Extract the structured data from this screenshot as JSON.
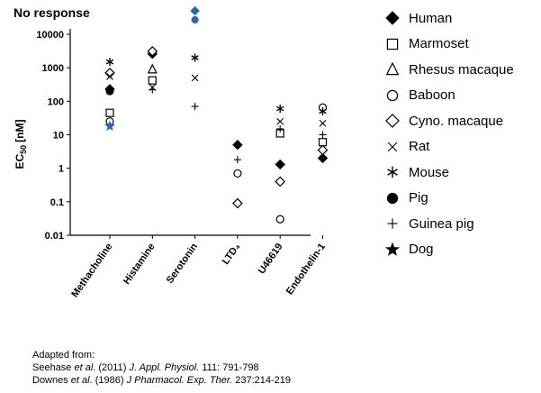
{
  "chart_data": {
    "type": "scatter",
    "title": "No response",
    "ylabel_main": "EC",
    "ylabel_sub": "50",
    "ylabel_unit": "[nM]",
    "yscale": "log",
    "ylim": [
      0.01,
      10000
    ],
    "yticks": [
      "10000",
      "1000",
      "100",
      "10",
      "1",
      "0.1",
      "0.01"
    ],
    "categories": [
      "Methacholine",
      "Histamine",
      "Serotonin",
      "LTD₄",
      "U46619",
      "Endothelin-1"
    ],
    "no_response": [
      {
        "category": "Serotonin",
        "symbol": "diamond-filled",
        "color": "#2e6aa6"
      },
      {
        "category": "Serotonin",
        "symbol": "circle-filled",
        "color": "#2e6aa6"
      }
    ],
    "series": [
      {
        "name": "Human",
        "symbol": "diamond-filled",
        "values": [
          230,
          2600,
          null,
          5,
          1.3,
          2
        ]
      },
      {
        "name": "Marmoset",
        "symbol": "square-open",
        "values": [
          45,
          420,
          null,
          null,
          11,
          6
        ]
      },
      {
        "name": "Rhesus macaque",
        "symbol": "triangle-open",
        "values": [
          null,
          900,
          null,
          null,
          null,
          null
        ]
      },
      {
        "name": "Baboon",
        "symbol": "circle-open",
        "values": [
          25,
          null,
          null,
          0.7,
          0.03,
          65
        ]
      },
      {
        "name": "Cyno. macaque",
        "symbol": "diamond-open",
        "values": [
          700,
          3100,
          null,
          0.09,
          0.4,
          3.5
        ]
      },
      {
        "name": "Rat",
        "symbol": "x",
        "values": [
          550,
          260,
          500,
          null,
          25,
          22
        ]
      },
      {
        "name": "Mouse",
        "symbol": "asterisk",
        "values": [
          1500,
          null,
          2000,
          null,
          60,
          50
        ]
      },
      {
        "name": "Pig",
        "symbol": "circle-filled",
        "values": [
          200,
          null,
          null,
          null,
          null,
          null
        ]
      },
      {
        "name": "Guinea pig",
        "symbol": "plus",
        "values": [
          null,
          220,
          70,
          1.8,
          15,
          10
        ]
      },
      {
        "name": "Dog",
        "symbol": "star",
        "values": [
          18,
          null,
          null,
          null,
          null,
          null
        ],
        "color": "#2e6aa6"
      }
    ]
  },
  "legend": [
    {
      "label": "Human",
      "symbol": "diamond-filled"
    },
    {
      "label": "Marmoset",
      "symbol": "square-open"
    },
    {
      "label": "Rhesus macaque",
      "symbol": "triangle-open"
    },
    {
      "label": "Baboon",
      "symbol": "circle-open"
    },
    {
      "label": "Cyno. macaque",
      "symbol": "diamond-open"
    },
    {
      "label": "Rat",
      "symbol": "x"
    },
    {
      "label": "Mouse",
      "symbol": "asterisk"
    },
    {
      "label": "Pig",
      "symbol": "circle-filled"
    },
    {
      "label": "Guinea pig",
      "symbol": "plus"
    },
    {
      "label": "Dog",
      "symbol": "star"
    }
  ],
  "citation": {
    "heading": "Adapted from:",
    "ref1": {
      "authors": "Seehase ",
      "etal": "et al",
      "year": ". (2011) ",
      "journal": "J. Appl. Physiol.",
      "rest": " 111: 791-798"
    },
    "ref2": {
      "authors": "Downes ",
      "etal": "et al",
      "year": ". (1986) ",
      "journal": "J Pharmacol. Exp. Ther.",
      "rest": " 237:214-219"
    }
  }
}
